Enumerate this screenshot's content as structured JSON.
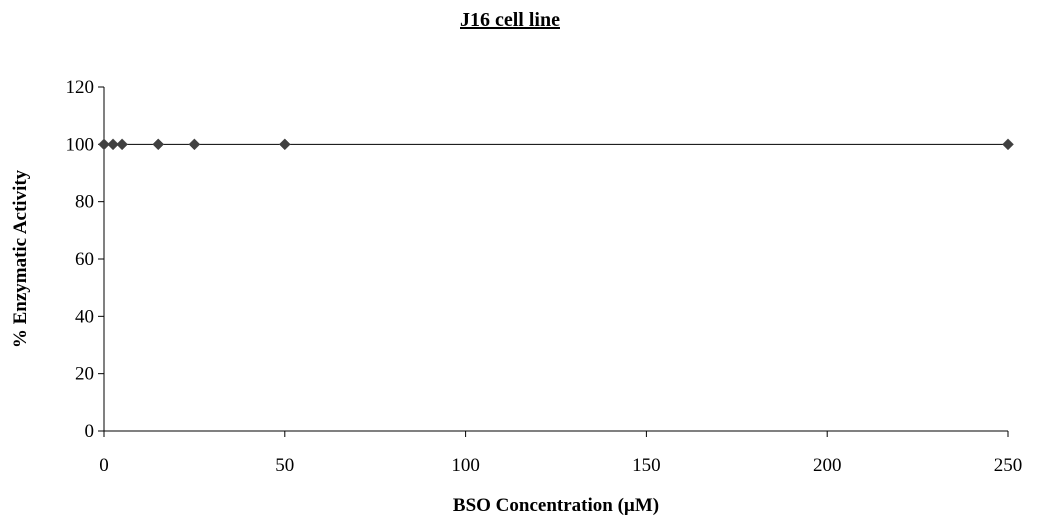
{
  "chart_data": {
    "type": "scatter",
    "title": "J16 cell line",
    "xlabel": "BSO Concentration (µM)",
    "ylabel": "% Enzymatic Activity",
    "xlim": [
      0,
      250
    ],
    "ylim": [
      0,
      120
    ],
    "xticks": [
      "0",
      "50",
      "100",
      "150",
      "200",
      "250"
    ],
    "yticks": [
      "0",
      "20",
      "40",
      "60",
      "80",
      "100",
      "120"
    ],
    "grid": false,
    "legend": "none",
    "marker": "diamond",
    "line": "connected",
    "series": [
      {
        "x": [
          0,
          2.5,
          5,
          15,
          25,
          50,
          250
        ],
        "y": [
          100,
          100,
          100,
          100,
          100,
          100,
          100
        ],
        "color": "#404040"
      }
    ]
  }
}
